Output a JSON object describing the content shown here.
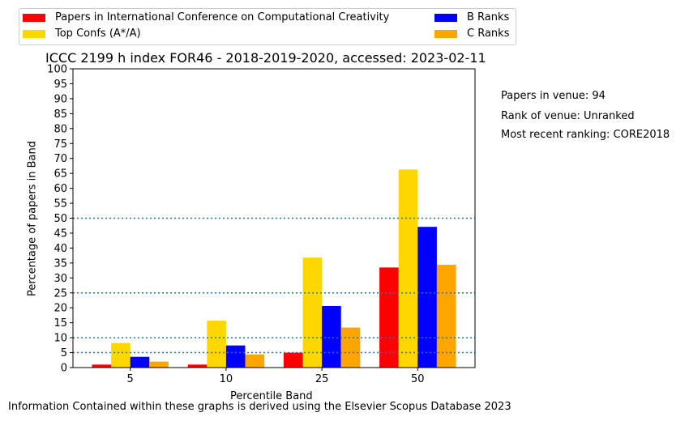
{
  "chart_data": {
    "type": "bar",
    "title": "ICCC 2199 h index FOR46 - 2018-2019-2020, accessed: 2023-02-11",
    "xlabel": "Percentile Band",
    "ylabel": "Percentage of papers in Band",
    "categories": [
      "5",
      "10",
      "25",
      "50"
    ],
    "ylim": [
      0,
      100
    ],
    "yticks": [
      "0",
      "5",
      "10",
      "15",
      "20",
      "25",
      "30",
      "35",
      "40",
      "45",
      "50",
      "55",
      "60",
      "65",
      "70",
      "75",
      "80",
      "85",
      "90",
      "95",
      "100"
    ],
    "reference_lines": [
      5,
      10,
      25,
      50
    ],
    "series": [
      {
        "name": "Papers in International Conference on Computational Creativity",
        "color": "#ff0000",
        "values": [
          1,
          1,
          5,
          33.5
        ]
      },
      {
        "name": "Top Confs (A*/A)",
        "color": "#ffd700",
        "values": [
          8.2,
          15.7,
          36.8,
          66.3
        ]
      },
      {
        "name": "B Ranks",
        "color": "#0000ff",
        "values": [
          3.6,
          7.4,
          20.6,
          47.1
        ]
      },
      {
        "name": "C Ranks",
        "color": "#ffa500",
        "values": [
          2.0,
          4.4,
          13.4,
          34.4
        ]
      }
    ],
    "legend_position": "top",
    "grid": false
  },
  "side_notes": {
    "papers": "Papers in venue: 94",
    "rank": "Rank of venue: Unranked",
    "recent": "Most recent ranking: CORE2018"
  },
  "footer": "Information Contained within these graphs is derived using the Elsevier Scopus Database 2023"
}
